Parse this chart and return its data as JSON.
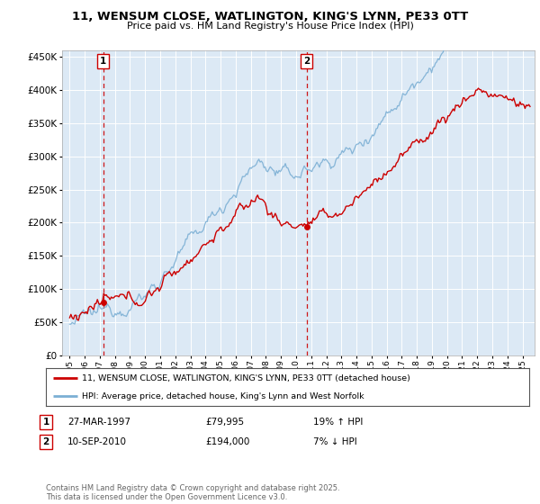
{
  "title": "11, WENSUM CLOSE, WATLINGTON, KING'S LYNN, PE33 0TT",
  "subtitle": "Price paid vs. HM Land Registry's House Price Index (HPI)",
  "legend_line1": "11, WENSUM CLOSE, WATLINGTON, KING'S LYNN, PE33 0TT (detached house)",
  "legend_line2": "HPI: Average price, detached house, King's Lynn and West Norfolk",
  "annotation1_label": "1",
  "annotation1_date": "27-MAR-1997",
  "annotation1_price": "£79,995",
  "annotation1_hpi": "19% ↑ HPI",
  "annotation2_label": "2",
  "annotation2_date": "10-SEP-2010",
  "annotation2_price": "£194,000",
  "annotation2_hpi": "7% ↓ HPI",
  "footer": "Contains HM Land Registry data © Crown copyright and database right 2025.\nThis data is licensed under the Open Government Licence v3.0.",
  "sale1_year": 1997.23,
  "sale1_price": 79995,
  "sale2_year": 2010.71,
  "sale2_price": 194000,
  "price_line_color": "#cc0000",
  "hpi_line_color": "#7bafd4",
  "dashed_line_color": "#cc0000",
  "plot_bg_color": "#dce9f5",
  "ylim": [
    0,
    460000
  ],
  "xlim_start": 1994.5,
  "xlim_end": 2025.8,
  "yticks": [
    0,
    50000,
    100000,
    150000,
    200000,
    250000,
    300000,
    350000,
    400000,
    450000
  ]
}
